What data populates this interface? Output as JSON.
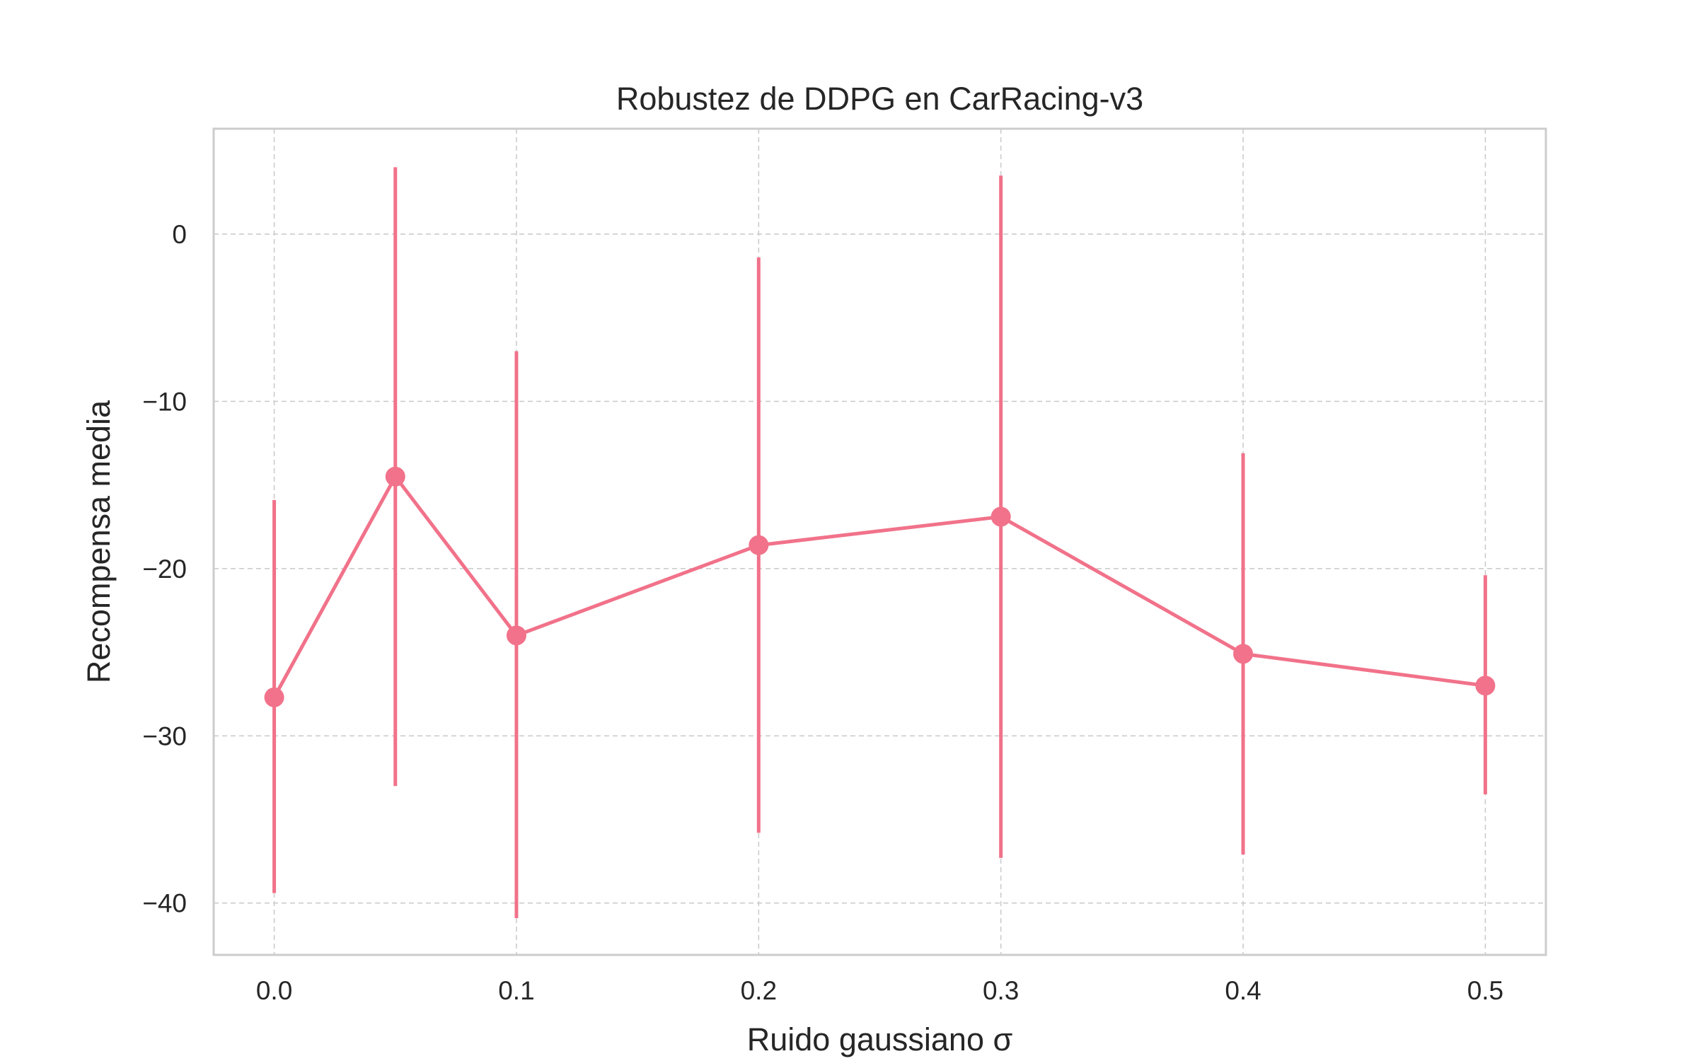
{
  "chart_data": {
    "type": "line",
    "title": "Robustez de DDPG en CarRacing-v3",
    "xlabel": "Ruido gaussiano σ",
    "ylabel": "Recompensa media",
    "xlim": [
      -0.025,
      0.525
    ],
    "ylim": [
      -43.1,
      6.3
    ],
    "x_ticks": [
      0.0,
      0.1,
      0.2,
      0.3,
      0.4,
      0.5
    ],
    "x_tick_labels": [
      "0.0",
      "0.1",
      "0.2",
      "0.3",
      "0.4",
      "0.5"
    ],
    "y_ticks": [
      0,
      -10,
      -20,
      -30,
      -40
    ],
    "y_tick_labels": [
      "0",
      "−10",
      "−20",
      "−30",
      "−40"
    ],
    "grid": true,
    "grid_style": "dashed",
    "legend": false,
    "colors": {
      "series": "#f1728a",
      "grid": "#cccccc",
      "frame": "#cccccc",
      "text": "#262626"
    },
    "series": [
      {
        "x": [
          0.0,
          0.05,
          0.1,
          0.2,
          0.3,
          0.4,
          0.5
        ],
        "y": [
          -27.7,
          -14.5,
          -24.0,
          -18.6,
          -16.9,
          -25.1,
          -27.0
        ],
        "yerr_low": [
          -39.4,
          -33.0,
          -40.9,
          -35.8,
          -37.3,
          -37.1,
          -33.5
        ],
        "yerr_high": [
          -15.9,
          4.0,
          -7.0,
          -1.4,
          3.5,
          -13.1,
          -20.4
        ]
      }
    ]
  }
}
